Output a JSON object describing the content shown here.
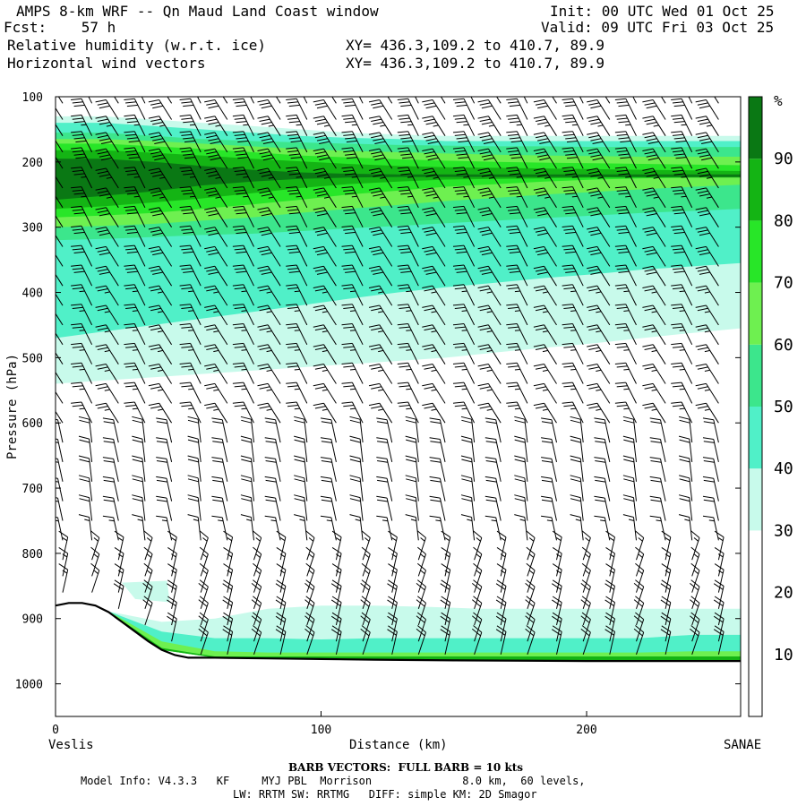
{
  "header": {
    "title": "AMPS 8-km WRF -- Qn Maud Land Coast window",
    "init": "Init: 00 UTC Wed 01 Oct 25",
    "fcst": "Fcst:    57 h",
    "valid": "Valid: 09 UTC Fri 03 Oct 25",
    "field1": "Relative humidity (w.r.t. ice)",
    "xy1": "XY= 436.3,109.2 to 410.7, 89.9",
    "field2": "Horizontal wind vectors",
    "xy2": "XY= 436.3,109.2 to 410.7, 89.9"
  },
  "footer": {
    "barb": "BARB VECTORS:  FULL BARB = 10 kts",
    "model_line1": "Model Info: V4.3.3   KF     MYJ PBL  Morrison              8.0 km,  60 levels,",
    "model_line2": "LW: RRTM SW: RRTMG   DIFF: simple KM: 2D Smagor"
  },
  "colors": {
    "rh_10_20": "#ffffff",
    "rh_20_30": "#ffffff",
    "rh_30_40": "#c8faeb",
    "rh_40_50": "#50f0c8",
    "rh_50_60": "#3ce68c",
    "rh_60_70": "#6ef050",
    "rh_70_80": "#28e628",
    "rh_80_90": "#14b414",
    "rh_90_100": "#0a7814",
    "terrain_line": "#000000"
  },
  "chart_data": {
    "type": "heatmap",
    "subtype": "vertical cross-section with wind barbs",
    "xlabel": "Distance (km)",
    "ylabel": "Pressure (hPa)",
    "x_start_label": "Veslis",
    "x_end_label": "SANAE",
    "xlim": [
      0,
      258
    ],
    "ylim": [
      1050,
      100
    ],
    "x_ticks": [
      0,
      100,
      200
    ],
    "y_ticks": [
      100,
      200,
      300,
      400,
      500,
      600,
      700,
      800,
      900,
      1000
    ],
    "colorbar": {
      "unit": "%",
      "levels": [
        10,
        20,
        30,
        40,
        50,
        60,
        70,
        80,
        90
      ],
      "bounds": [
        0,
        100
      ]
    },
    "rh_layers": [
      {
        "rh_min": 30,
        "top_hPa": [
          130,
          130,
          135,
          140,
          145,
          150,
          155,
          158,
          160,
          160,
          160,
          160,
          160,
          160,
          160
        ],
        "bottom_hPa": [
          540,
          535,
          530,
          525,
          520,
          515,
          510,
          505,
          500,
          492,
          485,
          478,
          470,
          462,
          455
        ]
      },
      {
        "rh_min": 40,
        "top_hPa": [
          140,
          140,
          145,
          150,
          155,
          160,
          163,
          165,
          168,
          168,
          168,
          168,
          168,
          168,
          168
        ],
        "bottom_hPa": [
          470,
          460,
          450,
          440,
          430,
          420,
          410,
          400,
          392,
          385,
          378,
          372,
          365,
          360,
          355
        ]
      },
      {
        "rh_min": 50,
        "top_hPa": [
          155,
          155,
          160,
          165,
          168,
          170,
          172,
          174,
          175,
          176,
          176,
          177,
          177,
          177,
          177
        ],
        "bottom_hPa": [
          320,
          318,
          315,
          312,
          310,
          306,
          302,
          298,
          294,
          290,
          286,
          282,
          278,
          275,
          272
        ]
      },
      {
        "rh_min": 60,
        "top_hPa": [
          165,
          165,
          168,
          172,
          176,
          180,
          183,
          185,
          187,
          189,
          190,
          191,
          192,
          192,
          192
        ],
        "bottom_hPa": [
          300,
          298,
          295,
          290,
          285,
          278,
          272,
          266,
          260,
          255,
          250,
          246,
          242,
          238,
          235
        ]
      },
      {
        "rh_min": 70,
        "top_hPa": [
          172,
          172,
          176,
          180,
          185,
          190,
          193,
          196,
          198,
          200,
          201,
          202,
          203,
          204,
          205
        ],
        "bottom_hPa": [
          285,
          282,
          278,
          272,
          265,
          258,
          250,
          244,
          238,
          234,
          230,
          227,
          225,
          224,
          223
        ]
      },
      {
        "rh_min": 80,
        "top_hPa": [
          182,
          182,
          186,
          190,
          195,
          199,
          203,
          206,
          208,
          209,
          210,
          211,
          212,
          213,
          214
        ],
        "bottom_hPa": [
          272,
          268,
          262,
          256,
          248,
          240,
          234,
          230,
          227,
          226,
          225,
          224,
          224,
          224,
          224
        ]
      },
      {
        "rh_min": 90,
        "top_hPa": [
          195,
          195,
          200,
          206,
          212,
          216,
          218,
          219,
          219,
          219,
          219,
          219,
          219,
          219,
          219
        ],
        "bottom_hPa": [
          258,
          252,
          245,
          236,
          230,
          226,
          224,
          223,
          223,
          223,
          223,
          223,
          223,
          223,
          223
        ]
      }
    ],
    "layer_x_km": [
      0,
      18,
      37,
      55,
      74,
      92,
      110,
      129,
      147,
      166,
      184,
      203,
      221,
      240,
      258
    ],
    "low_level_moisture": {
      "x_km": [
        0,
        20,
        40,
        60,
        80,
        100,
        120,
        140,
        160,
        180,
        200,
        220,
        240,
        258
      ],
      "rh30_top_hPa": [
        880,
        890,
        905,
        900,
        885,
        880,
        880,
        882,
        885,
        885,
        885,
        885,
        885,
        885
      ],
      "rh40_top_hPa": [
        882,
        895,
        920,
        930,
        930,
        932,
        930,
        930,
        930,
        930,
        930,
        930,
        925,
        925
      ],
      "rh60_top_hPa": [
        885,
        900,
        935,
        950,
        952,
        952,
        952,
        952,
        952,
        952,
        952,
        952,
        950,
        950
      ],
      "rh80_top_hPa": [
        887,
        905,
        945,
        958,
        958,
        958,
        958,
        958,
        958,
        958,
        958,
        958,
        958,
        958
      ]
    },
    "terrain": {
      "x_km": [
        0,
        5,
        10,
        15,
        20,
        25,
        30,
        35,
        40,
        45,
        50,
        60,
        80,
        100,
        120,
        150,
        200,
        258
      ],
      "surface_hPa": [
        880,
        876,
        876,
        880,
        890,
        905,
        920,
        935,
        948,
        956,
        960,
        960,
        961,
        962,
        963,
        964,
        965,
        965
      ]
    },
    "wind_barbs": {
      "x_km": [
        0,
        11,
        21,
        31,
        41,
        52,
        62,
        72,
        82,
        92,
        103,
        113,
        124,
        134,
        144,
        155,
        165,
        175,
        186,
        196,
        206,
        216,
        227,
        237,
        247
      ],
      "levels_hPa": [
        110,
        135,
        160,
        185,
        210,
        240,
        270,
        300,
        330,
        360,
        390,
        420,
        450,
        480,
        510,
        540,
        570,
        600,
        630,
        660,
        690,
        720,
        750,
        780,
        810,
        835,
        860,
        885,
        910,
        935,
        955
      ],
      "speed_profile_kts": [
        [
          110,
          25
        ],
        [
          200,
          40
        ],
        [
          300,
          30
        ],
        [
          500,
          25
        ],
        [
          700,
          20
        ],
        [
          820,
          15
        ],
        [
          950,
          20
        ]
      ],
      "direction_note": "westerly to north-westerly flow aloft, veering to easterly near the surface"
    }
  }
}
